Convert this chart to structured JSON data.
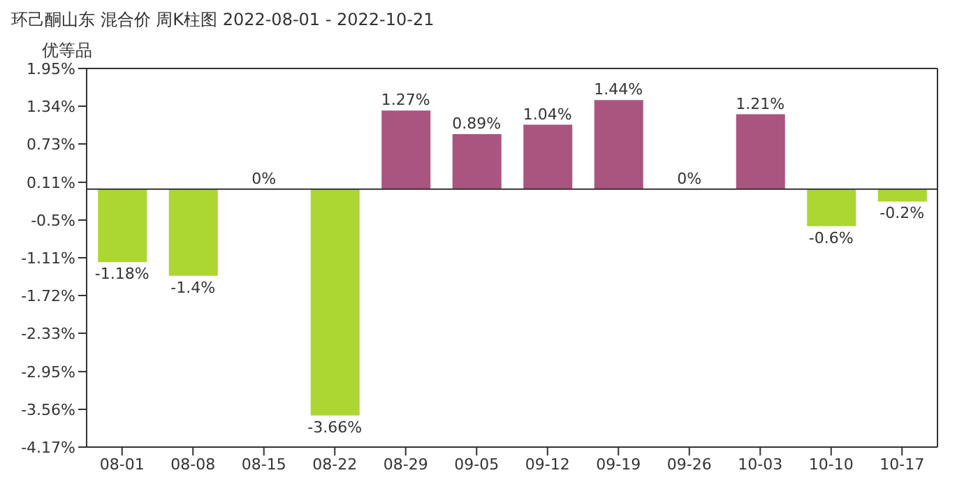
{
  "chart_data": {
    "type": "bar",
    "title": "环己酮山东 混合价 周K柱图 2022-08-01 - 2022-10-21",
    "subtitle": "优等品",
    "categories": [
      "08-01",
      "08-08",
      "08-15",
      "08-22",
      "08-29",
      "09-05",
      "09-12",
      "09-19",
      "09-26",
      "10-03",
      "10-10",
      "10-17"
    ],
    "values": [
      -1.18,
      -1.4,
      0,
      -3.66,
      1.27,
      0.89,
      1.04,
      1.44,
      0,
      1.21,
      -0.6,
      -0.2
    ],
    "value_labels": [
      "-1.18%",
      "-1.4%",
      "0%",
      "-3.66%",
      "1.27%",
      "0.89%",
      "1.04%",
      "1.44%",
      "0%",
      "1.21%",
      "-0.6%",
      "-0.2%"
    ],
    "colors": [
      "#acd632",
      "#acd632",
      "#a9557f",
      "#acd632",
      "#a9557f",
      "#a9557f",
      "#a9557f",
      "#a9557f",
      "#a9557f",
      "#a9557f",
      "#acd632",
      "#acd632"
    ],
    "ylim": [
      -4.17,
      1.95
    ],
    "yticks": [
      {
        "value": 1.95,
        "label": "1.95%"
      },
      {
        "value": 1.34,
        "label": "1.34%"
      },
      {
        "value": 0.73,
        "label": "0.73%"
      },
      {
        "value": 0.11,
        "label": "0.11%"
      },
      {
        "value": -0.5,
        "label": "-0.5%"
      },
      {
        "value": -1.11,
        "label": "-1.11%"
      },
      {
        "value": -1.72,
        "label": "-1.72%"
      },
      {
        "value": -2.33,
        "label": "-2.33%"
      },
      {
        "value": -2.95,
        "label": "-2.95%"
      },
      {
        "value": -3.56,
        "label": "-3.56%"
      },
      {
        "value": -4.17,
        "label": "-4.17%"
      }
    ],
    "ref_lines": [
      {
        "axis": "y",
        "value": 0,
        "color": "#333333"
      }
    ]
  }
}
